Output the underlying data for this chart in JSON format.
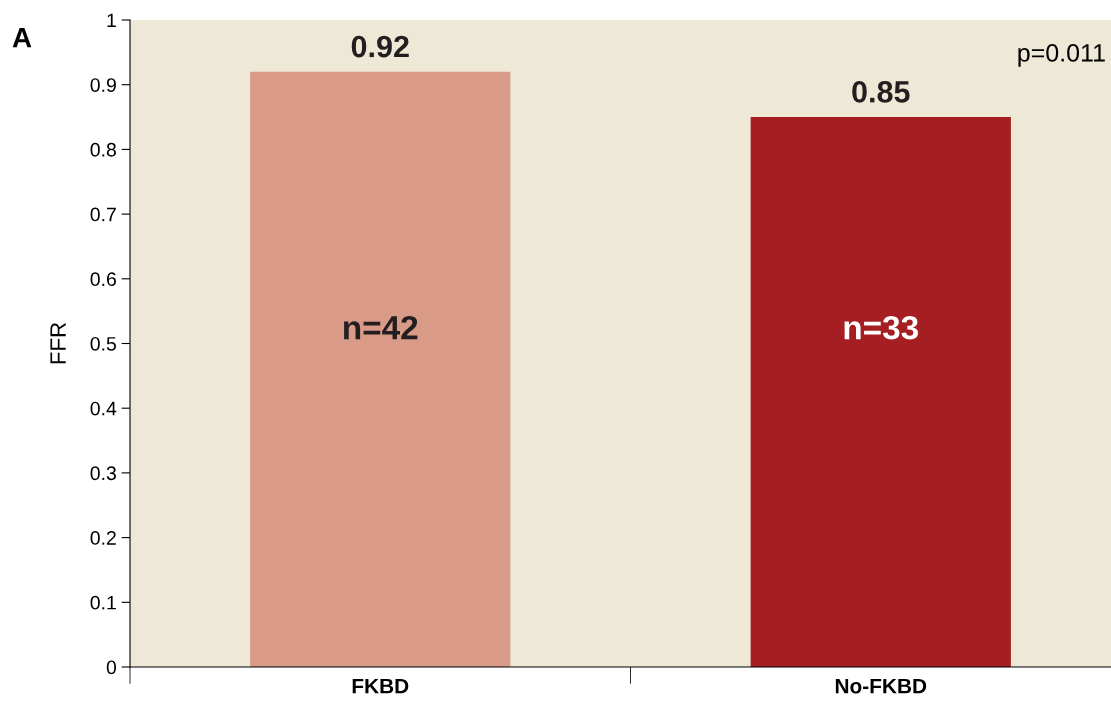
{
  "chart_data": {
    "type": "bar",
    "ylabel": "FFR",
    "categories": [
      "FKBD",
      "No-FKBD"
    ],
    "values": [
      0.92,
      0.85
    ],
    "colors": [
      "#d99a87",
      "#a51e22"
    ],
    "data_labels": true,
    "ylim": [
      0,
      1
    ],
    "yticks": [
      0,
      0.1,
      0.2,
      0.3,
      0.4,
      0.5,
      0.6,
      0.7,
      0.8,
      0.9,
      1
    ],
    "grid": false,
    "legend": false,
    "annotations": [
      "A",
      "p=0.011",
      "n=42",
      "n=33"
    ]
  }
}
